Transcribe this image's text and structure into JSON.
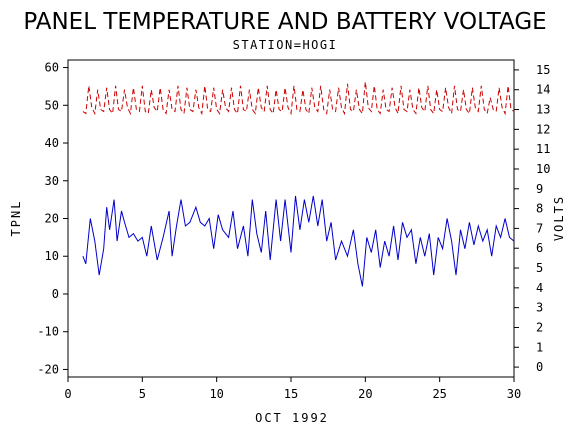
{
  "chart_data": {
    "type": "line",
    "title": "PANEL TEMPERATURE AND BATTERY VOLTAGE",
    "subtitle": "STATION=HOGI",
    "xlabel": "OCT 1992",
    "ylabel_left": "TPNL",
    "ylabel_right": "VOLTS",
    "xlim": [
      0,
      30
    ],
    "ylim_left": [
      -22,
      62
    ],
    "ylim_right": [
      -0.5,
      15.5
    ],
    "x_ticks": [
      0,
      5,
      10,
      15,
      20,
      25,
      30
    ],
    "y_left_ticks": [
      -20,
      -10,
      0,
      10,
      20,
      30,
      40,
      50,
      60
    ],
    "y_right_ticks": [
      0,
      1,
      2,
      3,
      4,
      5,
      6,
      7,
      8,
      9,
      10,
      11,
      12,
      13,
      14,
      15
    ],
    "grid": false,
    "series": [
      {
        "axis": "left",
        "color": "#0000cc",
        "style": "solid",
        "x": [
          1.0,
          1.2,
          1.5,
          1.8,
          2.1,
          2.4,
          2.6,
          2.8,
          3.1,
          3.3,
          3.6,
          3.8,
          4.1,
          4.4,
          4.7,
          5.0,
          5.3,
          5.6,
          6.0,
          6.4,
          6.8,
          7.0,
          7.3,
          7.6,
          7.9,
          8.2,
          8.6,
          8.9,
          9.2,
          9.5,
          9.8,
          10.1,
          10.4,
          10.8,
          11.1,
          11.4,
          11.8,
          12.1,
          12.4,
          12.7,
          13.0,
          13.3,
          13.6,
          14.0,
          14.3,
          14.6,
          15.0,
          15.3,
          15.6,
          15.9,
          16.2,
          16.5,
          16.8,
          17.1,
          17.4,
          17.7,
          18.0,
          18.4,
          18.8,
          19.2,
          19.5,
          19.8,
          20.1,
          20.4,
          20.7,
          21.0,
          21.3,
          21.6,
          21.9,
          22.2,
          22.5,
          22.8,
          23.1,
          23.4,
          23.7,
          24.0,
          24.3,
          24.6,
          24.9,
          25.2,
          25.5,
          25.8,
          26.1,
          26.4,
          26.7,
          27.0,
          27.3,
          27.6,
          27.9,
          28.2,
          28.5,
          28.8,
          29.1,
          29.4,
          29.7,
          30.0
        ],
        "y": [
          10,
          8,
          20,
          14,
          5,
          12,
          23,
          17,
          25,
          14,
          22,
          19,
          15,
          16,
          14,
          15,
          10,
          18,
          9,
          15,
          22,
          10,
          18,
          25,
          18,
          19,
          23,
          19,
          18,
          20,
          12,
          21,
          17,
          15,
          22,
          12,
          18,
          10,
          25,
          16,
          11,
          22,
          9,
          25,
          14,
          25,
          11,
          26,
          17,
          25,
          19,
          26,
          18,
          25,
          14,
          19,
          9,
          14,
          10,
          17,
          8,
          2,
          15,
          11,
          17,
          7,
          14,
          10,
          18,
          9,
          19,
          15,
          17,
          8,
          15,
          10,
          16,
          5,
          15,
          12,
          20,
          14,
          5,
          17,
          12,
          19,
          13,
          18,
          14,
          17,
          10,
          18,
          15,
          20,
          15,
          14
        ]
      },
      {
        "axis": "right",
        "color": "#cc0000",
        "style": "dashed",
        "x": [
          1.0,
          1.2,
          1.4,
          1.6,
          1.8,
          2.0,
          2.2,
          2.4,
          2.6,
          2.8,
          3.0,
          3.2,
          3.4,
          3.6,
          3.8,
          4.0,
          4.2,
          4.4,
          4.6,
          4.8,
          5.0,
          5.2,
          5.4,
          5.6,
          5.8,
          6.0,
          6.2,
          6.4,
          6.6,
          6.8,
          7.0,
          7.2,
          7.4,
          7.6,
          7.8,
          8.0,
          8.2,
          8.4,
          8.6,
          8.8,
          9.0,
          9.2,
          9.4,
          9.6,
          9.8,
          10.0,
          10.2,
          10.4,
          10.6,
          10.8,
          11.0,
          11.2,
          11.4,
          11.6,
          11.8,
          12.0,
          12.2,
          12.4,
          12.6,
          12.8,
          13.0,
          13.2,
          13.4,
          13.6,
          13.8,
          14.0,
          14.2,
          14.4,
          14.6,
          14.8,
          15.0,
          15.2,
          15.4,
          15.6,
          15.8,
          16.0,
          16.2,
          16.4,
          16.6,
          16.8,
          17.0,
          17.2,
          17.4,
          17.6,
          17.8,
          18.0,
          18.2,
          18.4,
          18.6,
          18.8,
          19.0,
          19.2,
          19.4,
          19.6,
          19.8,
          20.0,
          20.2,
          20.4,
          20.6,
          20.8,
          21.0,
          21.2,
          21.4,
          21.6,
          21.8,
          22.0,
          22.2,
          22.4,
          22.6,
          22.8,
          23.0,
          23.2,
          23.4,
          23.6,
          23.8,
          24.0,
          24.2,
          24.4,
          24.6,
          24.8,
          25.0,
          25.2,
          25.4,
          25.6,
          25.8,
          26.0,
          26.2,
          26.4,
          26.6,
          26.8,
          27.0,
          27.2,
          27.4,
          27.6,
          27.8,
          28.0,
          28.2,
          28.4,
          28.6,
          28.8,
          29.0,
          29.2,
          29.4,
          29.6,
          29.8,
          30.0
        ],
        "y": [
          12.9,
          12.8,
          14.2,
          13.1,
          12.8,
          14.0,
          13.0,
          12.9,
          14.1,
          13.0,
          12.8,
          14.2,
          13.0,
          12.9,
          14.0,
          13.1,
          12.8,
          14.1,
          13.0,
          12.9,
          14.2,
          12.9,
          12.8,
          14.0,
          13.1,
          12.9,
          14.1,
          13.0,
          12.8,
          14.0,
          13.0,
          12.9,
          14.2,
          13.0,
          12.8,
          14.1,
          13.0,
          12.9,
          14.0,
          13.1,
          12.8,
          14.2,
          13.0,
          12.9,
          14.1,
          13.0,
          12.8,
          14.0,
          13.1,
          12.9,
          14.1,
          13.0,
          12.8,
          14.2,
          13.0,
          12.9,
          14.0,
          13.0,
          12.8,
          14.1,
          13.1,
          12.9,
          14.2,
          13.0,
          12.8,
          14.0,
          13.0,
          12.9,
          14.1,
          13.1,
          12.8,
          14.2,
          13.0,
          12.9,
          14.0,
          13.0,
          12.8,
          14.1,
          13.1,
          12.9,
          14.2,
          13.0,
          12.8,
          14.0,
          13.0,
          12.9,
          14.1,
          13.1,
          12.8,
          14.3,
          13.0,
          12.9,
          14.0,
          13.0,
          12.8,
          14.4,
          13.1,
          12.9,
          14.2,
          13.0,
          12.8,
          14.0,
          13.0,
          12.9,
          14.1,
          13.1,
          12.8,
          14.2,
          13.0,
          12.9,
          14.0,
          13.0,
          12.8,
          14.1,
          13.1,
          12.9,
          14.2,
          13.0,
          12.8,
          14.0,
          13.0,
          12.9,
          14.1,
          13.1,
          12.8,
          14.2,
          13.0,
          12.9,
          14.0,
          13.0,
          12.8,
          14.1,
          13.1,
          12.9,
          14.2,
          13.0,
          12.8,
          13.6,
          13.0,
          12.9,
          14.1,
          13.1,
          12.8,
          14.2,
          13.0,
          12.9
        ]
      }
    ]
  }
}
